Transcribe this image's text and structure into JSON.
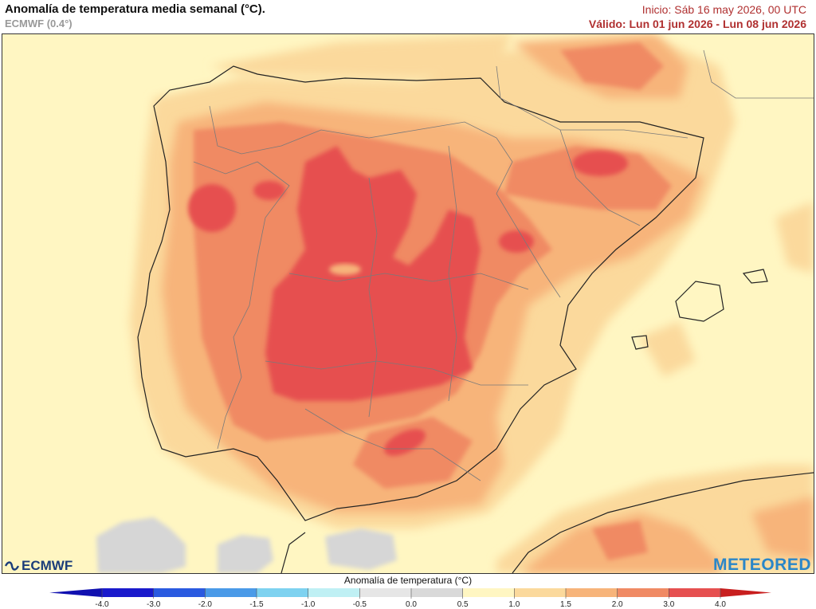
{
  "header": {
    "title": "Anomalía de temperatura media semanal (°C).",
    "model": "ECMWF (0.4°)",
    "init": "Inicio: Sáb 16 may 2026, 00 UTC",
    "valid": "Válido: Lun 01 jun 2026 - Lun 08 jun 2026"
  },
  "logos": {
    "left": "ECMWF",
    "right": "METEORED"
  },
  "legend": {
    "title": "Anomalía de temperatura (°C)",
    "ticks": [
      "-4.0",
      "-3.0",
      "-2.0",
      "-1.5",
      "-1.0",
      "-0.5",
      "0.0",
      "0.5",
      "1.0",
      "1.5",
      "2.0",
      "3.0",
      "4.0"
    ],
    "colors": [
      "#1a1acc",
      "#2a5ae0",
      "#4a9ae8",
      "#7ed2f0",
      "#bff0f4",
      "#e6e6e6",
      "#d9d9d9",
      "#fff6c2",
      "#fbd99c",
      "#f7b47a",
      "#f08a64",
      "#e65050"
    ],
    "end_colors": {
      "low": "#1010b0",
      "high": "#c81e1e"
    }
  },
  "map_colors": {
    "sea_bg": "#fff6c2",
    "anom_05_10": "#fbd99c",
    "anom_10_15": "#f7b47a",
    "anom_15_20": "#f08a64",
    "anom_20_30": "#e65050",
    "neutral": "#d6d6d6",
    "coast": "#222222",
    "borders": "#7a7a7a"
  }
}
